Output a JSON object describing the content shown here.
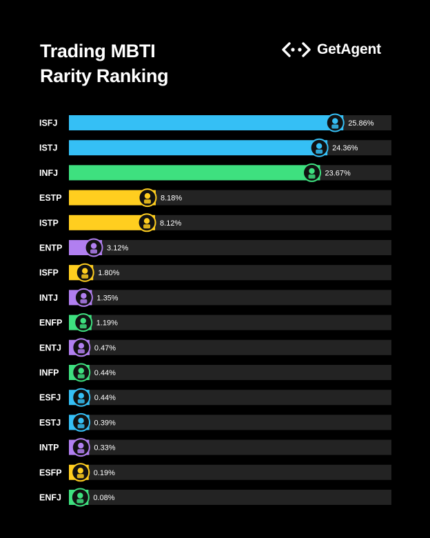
{
  "title_line1": "Trading MBTI",
  "title_line2": "Rarity Ranking",
  "brand": {
    "name": "GetAgent",
    "icon": "getagent-logo-icon"
  },
  "colors": {
    "background": "#000000",
    "track": "#232323",
    "blue": "#35bff5",
    "green": "#3ee07f",
    "yellow": "#ffce1f",
    "purple": "#b17ff0"
  },
  "chart_data": {
    "type": "bar",
    "orientation": "horizontal",
    "title": "Trading MBTI Rarity Ranking",
    "xlim": [
      0,
      30
    ],
    "categories": [
      "ISFJ",
      "ISTJ",
      "INFJ",
      "ESTP",
      "ISTP",
      "ENTP",
      "ISFP",
      "INTJ",
      "ENFP",
      "ENTJ",
      "INFP",
      "ESFJ",
      "ESTJ",
      "INTP",
      "ESFP",
      "ENFJ"
    ],
    "values": [
      25.86,
      24.36,
      23.67,
      8.18,
      8.12,
      3.12,
      1.8,
      1.35,
      1.19,
      0.47,
      0.44,
      0.44,
      0.39,
      0.33,
      0.19,
      0.08
    ],
    "labels": [
      "25.86%",
      "24.36%",
      "23.67%",
      "8.18%",
      "8.12%",
      "3.12%",
      "1.80%",
      "1.35%",
      "1.19%",
      "0.47%",
      "0.44%",
      "0.44%",
      "0.39%",
      "0.33%",
      "0.19%",
      "0.08%"
    ],
    "bar_colors": [
      "blue",
      "blue",
      "green",
      "yellow",
      "yellow",
      "purple",
      "yellow",
      "purple",
      "green",
      "purple",
      "green",
      "blue",
      "blue",
      "purple",
      "yellow",
      "green"
    ]
  }
}
